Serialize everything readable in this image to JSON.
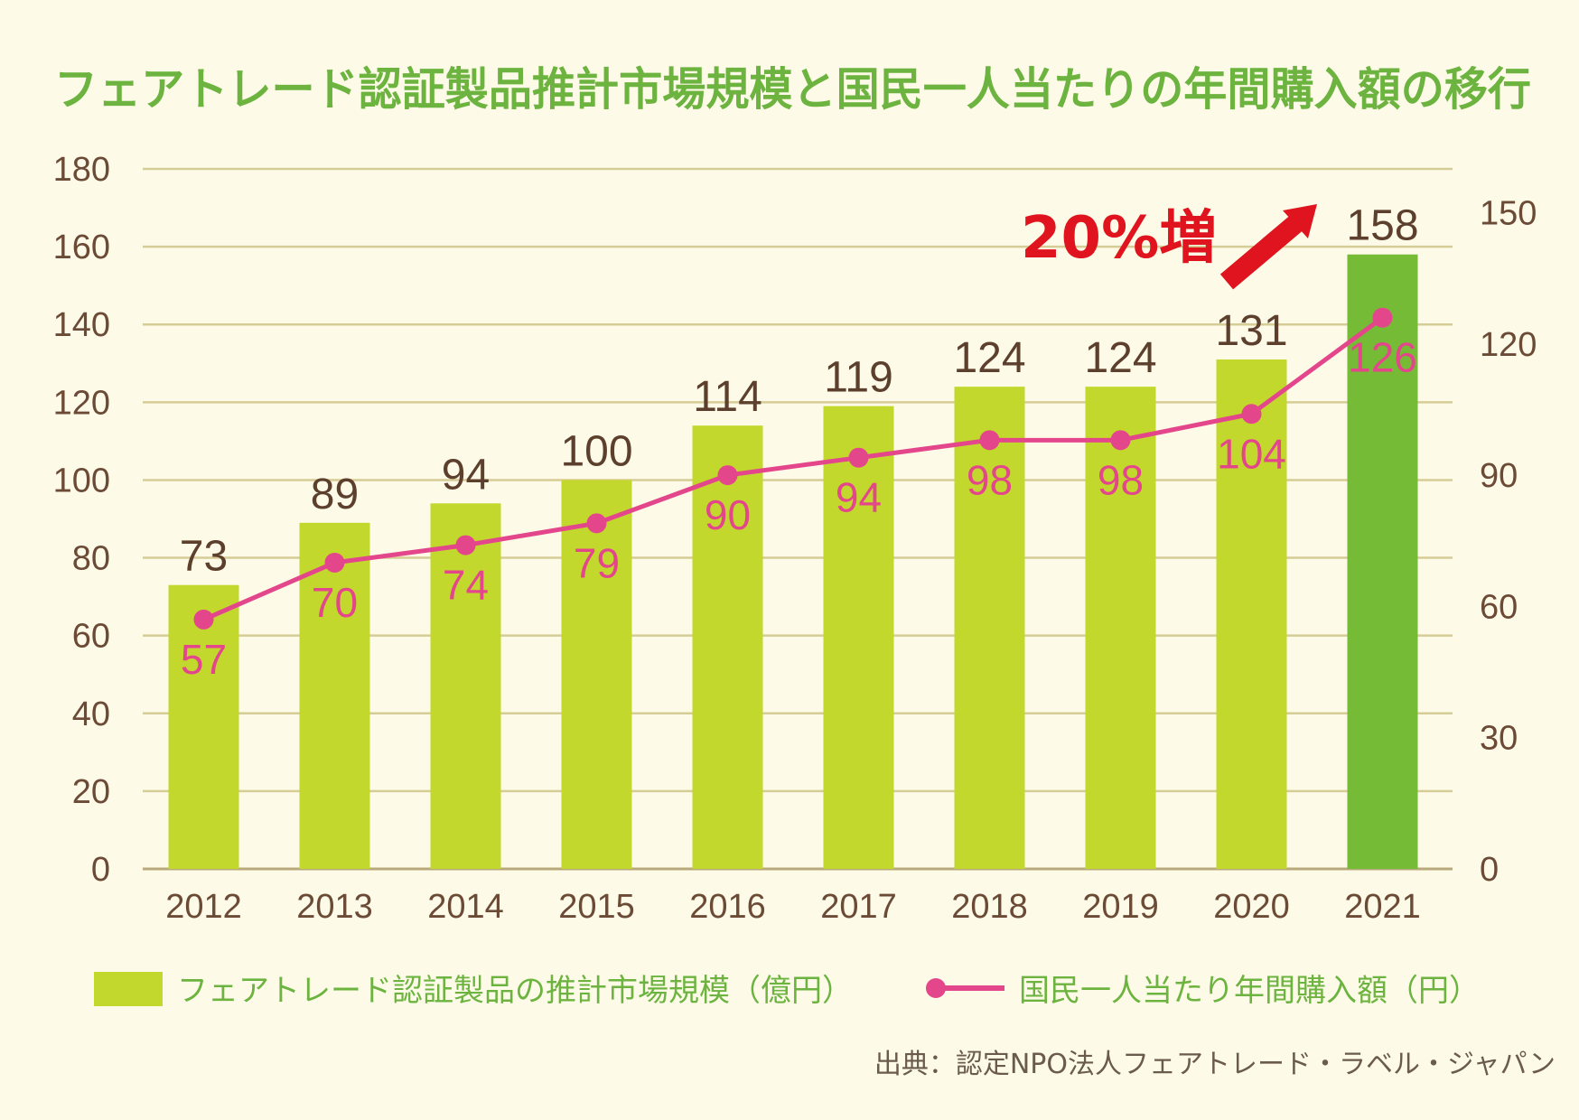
{
  "chart_data": {
    "type": "bar",
    "title": "フェアトレード認証製品推計市場規模と国民一人当たりの年間購入額の移行",
    "categories": [
      "2012",
      "2013",
      "2014",
      "2015",
      "2016",
      "2017",
      "2018",
      "2019",
      "2020",
      "2021"
    ],
    "series": [
      {
        "name": "フェアトレード認証製品の推計市場規模（億円）",
        "type": "bar",
        "axis": "left",
        "values": [
          73,
          89,
          94,
          100,
          114,
          119,
          124,
          124,
          131,
          158
        ],
        "color": "#c3d82c",
        "highlight_color": "#76bb35"
      },
      {
        "name": "国民一人当たり年間購入額（円）",
        "type": "line",
        "axis": "right",
        "values": [
          57,
          70,
          74,
          79,
          90,
          94,
          98,
          98,
          104,
          126
        ],
        "color": "#e4468c"
      }
    ],
    "left_axis": {
      "range": [
        0,
        180
      ],
      "ticks": [
        "0",
        "20",
        "40",
        "60",
        "80",
        "100",
        "120",
        "140",
        "160",
        "180"
      ]
    },
    "right_axis": {
      "range": [
        0,
        160
      ],
      "ticks": [
        "0",
        "30",
        "60",
        "90",
        "120",
        "150"
      ]
    },
    "annotation": "20%増",
    "grid": true,
    "legend_position": "bottom",
    "source": "出典：認定NPO法人フェアトレード・ラベル・ジャパン"
  }
}
